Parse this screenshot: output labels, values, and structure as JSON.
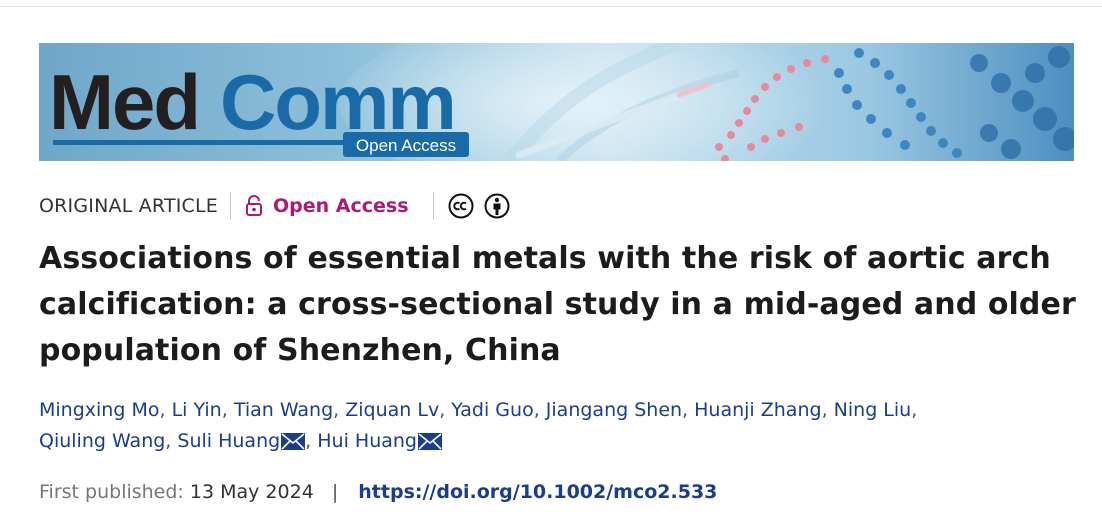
{
  "banner": {
    "logo_text_dark": "Med",
    "logo_text_blue": "Comm",
    "badge": "Open Access",
    "colors": {
      "logo_dark": "#231f20",
      "logo_blue": "#1b6aa8",
      "badge_bg": "#1b6aa8",
      "background": "#8cbcd6"
    }
  },
  "meta": {
    "article_type": "ORIGINAL ARTICLE",
    "open_access_label": "Open Access",
    "open_access_color": "#b0196f",
    "license_icons": [
      "creative-commons-icon",
      "attribution-icon"
    ]
  },
  "article": {
    "title": "Associations of essential metals with the risk of aortic arch calcification: a cross-sectional study in a mid-aged and older population of Shenzhen, China"
  },
  "authors": [
    {
      "name": "Mingxing Mo",
      "corresponding": false
    },
    {
      "name": "Li Yin",
      "corresponding": false
    },
    {
      "name": "Tian Wang",
      "corresponding": false
    },
    {
      "name": "Ziquan Lv",
      "corresponding": false
    },
    {
      "name": "Yadi Guo",
      "corresponding": false
    },
    {
      "name": "Jiangang Shen",
      "corresponding": false
    },
    {
      "name": "Huanji Zhang",
      "corresponding": false
    },
    {
      "name": "Ning Liu",
      "corresponding": false
    },
    {
      "name": "Qiuling Wang",
      "corresponding": false
    },
    {
      "name": "Suli Huang",
      "corresponding": true
    },
    {
      "name": "Hui Huang",
      "corresponding": true
    }
  ],
  "publication": {
    "label": "First published:",
    "date": "13 May 2024",
    "separator": "|",
    "doi": "https://doi.org/10.1002/mco2.533"
  }
}
